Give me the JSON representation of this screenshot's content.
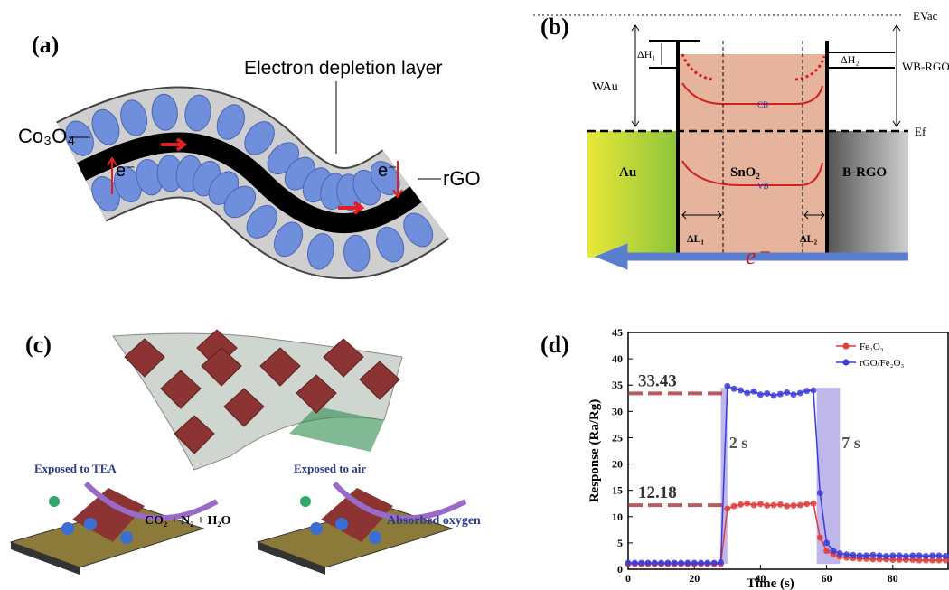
{
  "panels": {
    "a": {
      "label": "(a)",
      "depletion": "Electron depletion layer",
      "co3o4": "Co₃O₄",
      "rgo": "rGO",
      "electron": "e⁻"
    },
    "b": {
      "label": "(b)",
      "evac": "EVac",
      "wau": "WAu",
      "dh1": "ΔH₁",
      "dh2": "ΔH₂",
      "wbrgo": "WB-RGO",
      "ef": "Ef",
      "au": "Au",
      "sno2": "SnO₂",
      "brgo": "B-RGO",
      "cb": "CB",
      "vb": "VB",
      "dl1": "ΔL₁",
      "dl2": "ΔL₂",
      "electron": "e⁻"
    },
    "c": {
      "label": "(c)",
      "tea": "Exposed to TEA",
      "products": "CO₂ + N₂ + H₂O",
      "air": "Exposed to air",
      "oxygen": "Absorbed oxygen"
    },
    "d": {
      "label": "(d)"
    }
  },
  "chart_data": {
    "type": "line",
    "xlabel": "Time (s)",
    "ylabel": "Response (Ra/Rg)",
    "x": [
      0,
      2,
      4,
      6,
      8,
      10,
      12,
      14,
      16,
      18,
      20,
      22,
      24,
      26,
      28,
      30,
      32,
      34,
      36,
      38,
      40,
      42,
      44,
      46,
      48,
      50,
      52,
      54,
      56,
      58,
      60,
      62,
      64,
      66,
      68,
      70,
      72,
      74,
      76,
      78,
      80,
      82,
      84,
      86,
      88,
      90,
      92,
      94,
      96
    ],
    "series": [
      {
        "name": "Fe₂O₃",
        "color": "#e23b3b",
        "values": [
          1,
          1,
          1,
          1,
          1,
          1,
          1,
          1,
          1,
          1,
          1,
          1,
          1,
          1,
          1,
          11.5,
          12,
          12.3,
          12.5,
          12.2,
          12.4,
          12.1,
          12.2,
          12.3,
          12,
          12.1,
          12.2,
          12.4,
          12.5,
          6,
          3.5,
          2.8,
          2.4,
          2.2,
          2.1,
          2,
          2,
          1.9,
          1.9,
          1.9,
          1.8,
          1.8,
          1.8,
          1.8,
          1.7,
          1.7,
          1.7,
          1.7,
          1.7
        ]
      },
      {
        "name": "rGO/Fe₂O₃",
        "color": "#3b3bdc",
        "values": [
          1.2,
          1.2,
          1.2,
          1.2,
          1.2,
          1.2,
          1.2,
          1.2,
          1.2,
          1.2,
          1.2,
          1.2,
          1.2,
          1.2,
          1.3,
          34.8,
          34.3,
          34,
          33.5,
          33.8,
          33.2,
          33.4,
          33,
          33.3,
          33.6,
          33.2,
          33.5,
          33.9,
          34,
          14.5,
          5,
          3.5,
          3,
          2.8,
          2.7,
          2.6,
          2.6,
          2.7,
          2.6,
          2.5,
          2.6,
          2.6,
          2.5,
          2.6,
          2.6,
          2.5,
          2.6,
          2.6,
          2.5
        ]
      }
    ],
    "xlim": [
      0,
      97
    ],
    "xticks": [
      0,
      20,
      40,
      60,
      80
    ],
    "ylim": [
      0,
      45
    ],
    "yticks": [
      0,
      5,
      10,
      15,
      20,
      25,
      30,
      35,
      40,
      45
    ],
    "hlines": [
      {
        "value": 33.43,
        "label": "33.43",
        "end": 30
      },
      {
        "value": 12.18,
        "label": "12.18",
        "end": 30
      }
    ],
    "spans": [
      {
        "start": 28,
        "end": 30,
        "label": "2 s"
      },
      {
        "start": 57,
        "end": 64,
        "label": "7 s"
      }
    ],
    "legend": "upper right"
  }
}
